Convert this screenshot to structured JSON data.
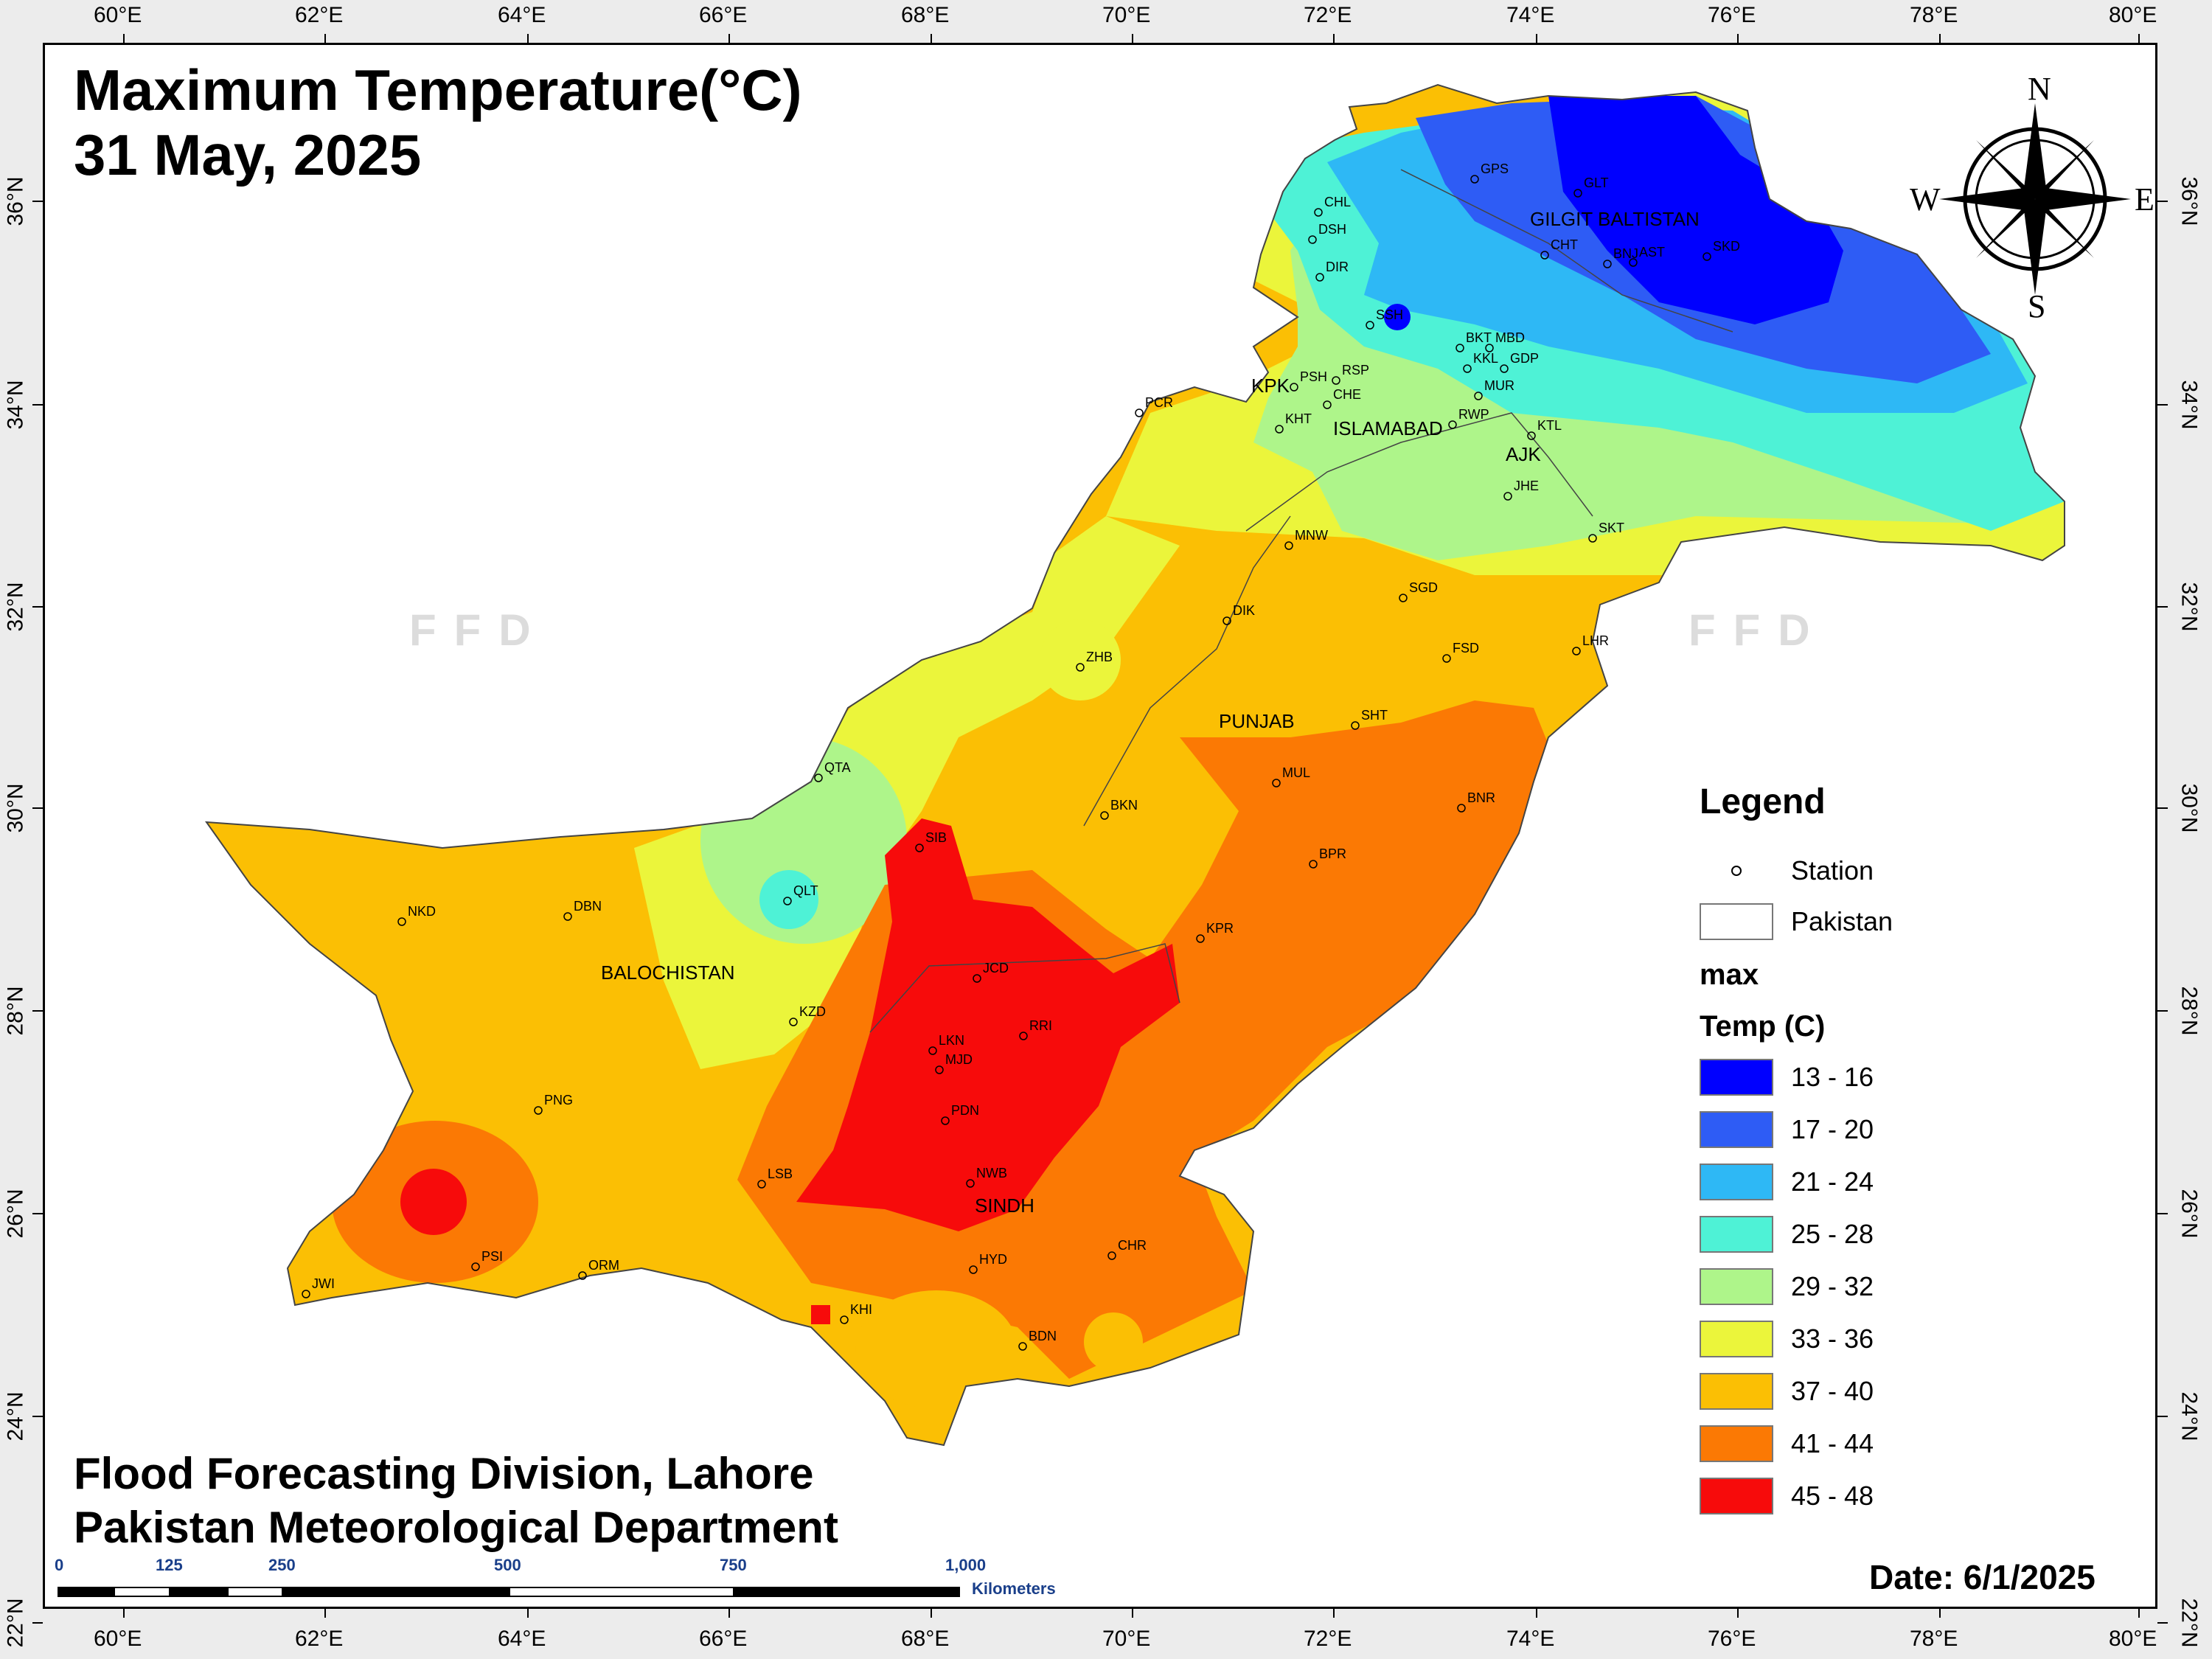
{
  "title": {
    "line1": "Maximum Temperature(°C)",
    "line2": "31 May, 2025"
  },
  "credits": {
    "line1": "Flood Forecasting Division, Lahore",
    "line2": "Pakistan Meteorological Department"
  },
  "date": "Date: 6/1/2025",
  "watermark": "FFD",
  "lon_ticks": [
    "60°E",
    "62°E",
    "64°E",
    "66°E",
    "68°E",
    "70°E",
    "72°E",
    "74°E",
    "76°E",
    "78°E",
    "80°E"
  ],
  "lat_ticks": [
    "22°N",
    "24°N",
    "26°N",
    "28°N",
    "30°N",
    "32°N",
    "34°N",
    "36°N"
  ],
  "compass": {
    "n": "N",
    "s": "S",
    "e": "E",
    "w": "W"
  },
  "regions": [
    "GILGIT BALTISTAN",
    "KPK",
    "ISLAMABAD",
    "AJK",
    "PUNJAB",
    "BALOCHISTAN",
    "SINDH"
  ],
  "stations": [
    "GPS",
    "GLT",
    "CHL",
    "DSH",
    "CHT",
    "BNJ",
    "AST",
    "SKD",
    "DIR",
    "SSH",
    "BKT",
    "MBD",
    "KKL",
    "GDP",
    "MUR",
    "PCR",
    "PSH",
    "RSP",
    "CHE",
    "KHT",
    "RWP",
    "KTL",
    "JHE",
    "MNW",
    "SKT",
    "SGD",
    "DIK",
    "ZHB",
    "LHR",
    "FSD",
    "SHT",
    "QTA",
    "MUL",
    "BKN",
    "BNR",
    "SIB",
    "BPR",
    "QLT",
    "NKD",
    "DBN",
    "KPR",
    "JCD",
    "KZD",
    "RRI",
    "LKN",
    "MJD",
    "PNG",
    "PDN",
    "NWB",
    "LSB",
    "PSI",
    "JWI",
    "ORM",
    "KHI",
    "HYD",
    "CHR",
    "BDN"
  ],
  "legend": {
    "title": "Legend",
    "station_label": "Station",
    "boundary_label": "Pakistan",
    "field_label": "max",
    "unit_label": "Temp (C)",
    "classes": [
      {
        "label": "13 - 16",
        "color": "#0000ff"
      },
      {
        "label": "17 - 20",
        "color": "#2e5cf5"
      },
      {
        "label": "21 - 24",
        "color": "#2eb8f5"
      },
      {
        "label": "25 - 28",
        "color": "#4ef2d6"
      },
      {
        "label": "29 - 32",
        "color": "#aef58a"
      },
      {
        "label": "33 - 36",
        "color": "#ebf53b"
      },
      {
        "label": "37 - 40",
        "color": "#fbbf04"
      },
      {
        "label": "41 - 44",
        "color": "#fb7904"
      },
      {
        "label": "45 - 48",
        "color": "#f70b0b"
      }
    ]
  },
  "scalebar": {
    "labels": [
      "0",
      "125",
      "250",
      "500",
      "750",
      "1,000"
    ],
    "unit": "Kilometers"
  }
}
